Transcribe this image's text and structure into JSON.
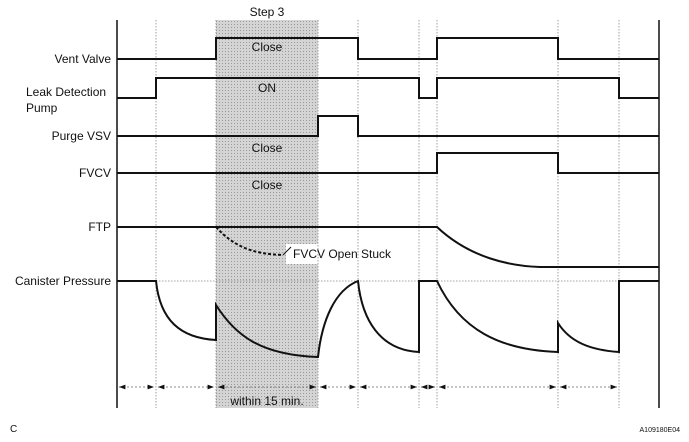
{
  "diagram": {
    "step_label": "Step 3",
    "signals": [
      {
        "label": "Vent Valve",
        "state_in_step": "Close"
      },
      {
        "label_line1": "Leak Detection",
        "label_line2": "Pump",
        "state_in_step": "ON"
      },
      {
        "label": "Purge VSV",
        "state_in_step": "Close"
      },
      {
        "label": "FVCV",
        "state_in_step": "Close"
      },
      {
        "label": "FTP",
        "annotation": "FVCV Open Stuck"
      },
      {
        "label": "Canister Pressure"
      }
    ],
    "duration_label": "within 15 min.",
    "shade_color": "#c8c8c8",
    "corner_left": "C",
    "figure_id": "A109180E04"
  }
}
